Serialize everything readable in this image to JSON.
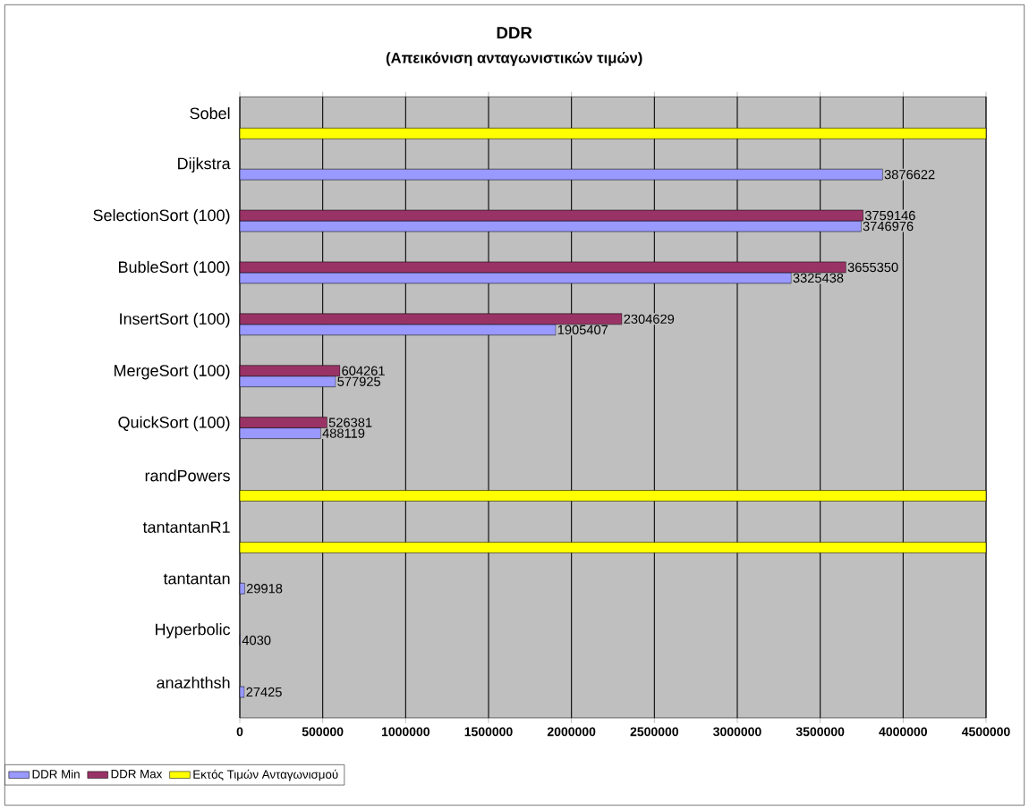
{
  "chart_data": {
    "type": "bar",
    "orientation": "horizontal",
    "title": "DDR",
    "subtitle": "(Απεικόνιση ανταγωνιστικών τιμών)",
    "categories": [
      "Sobel",
      "Dijkstra",
      "SelectionSort (100)",
      "BubleSort (100)",
      "InsertSort (100)",
      "MergeSort (100)",
      "QuickSort (100)",
      "randPowers",
      "tantantanR1",
      "tantantan",
      "Hyperbolic",
      "anazhthsh"
    ],
    "series": [
      {
        "name": "DDR Min",
        "color": "#9999ff",
        "values": [
          null,
          3876622,
          3746976,
          3325438,
          1905407,
          577925,
          488119,
          null,
          null,
          29918,
          4030,
          27425
        ],
        "value_labels": [
          null,
          "3876622",
          "3746976",
          "3325438",
          "1905407",
          "577925",
          "488119",
          null,
          null,
          "29918",
          "4030",
          "27425"
        ]
      },
      {
        "name": "DDR Max",
        "color": "#993366",
        "values": [
          null,
          null,
          3759146,
          3655350,
          2304629,
          604261,
          526381,
          null,
          null,
          null,
          null,
          null
        ],
        "value_labels": [
          null,
          null,
          "3759146",
          "3655350",
          "2304629",
          "604261",
          "526381",
          null,
          null,
          null,
          null,
          null
        ]
      },
      {
        "name": "Εκτός Τιμών Ανταγωνισμού",
        "color": "#ffff00",
        "values": [
          4500000,
          null,
          null,
          null,
          null,
          null,
          null,
          4500000,
          4500000,
          null,
          null,
          null
        ]
      }
    ],
    "xlim": [
      0,
      4500000
    ],
    "xticks": [
      0,
      500000,
      1000000,
      1500000,
      2000000,
      2500000,
      3000000,
      3500000,
      4000000,
      4500000
    ],
    "grid": "x",
    "legend": "bottom left"
  }
}
